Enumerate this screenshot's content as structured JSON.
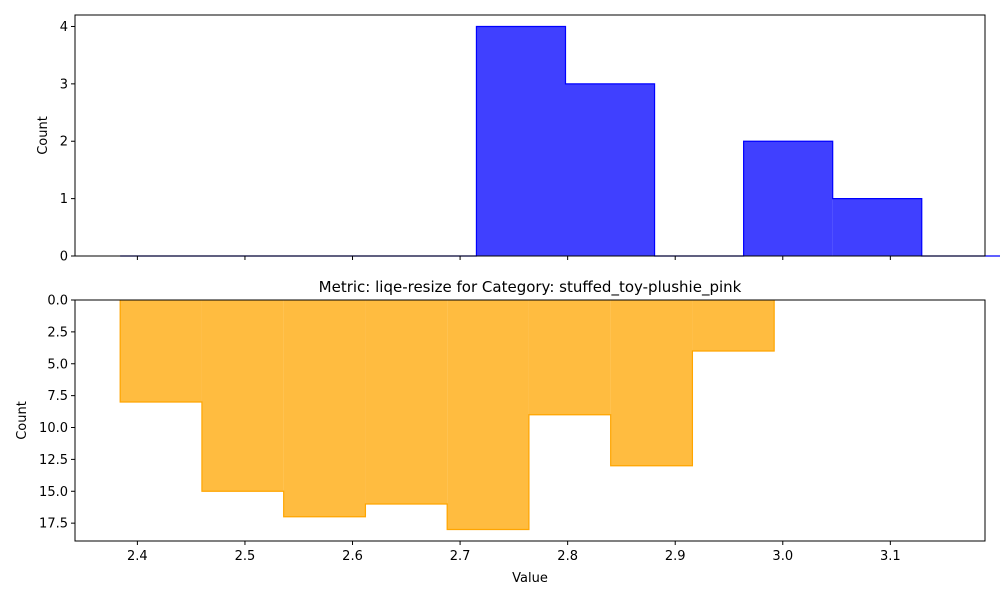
{
  "chart_data": [
    {
      "type": "histogram-step",
      "title": "",
      "xlabel": "",
      "ylabel": "Count",
      "xlim": [
        2.342,
        3.188
      ],
      "ylim": [
        0,
        4.2
      ],
      "y_inverted": false,
      "xticks": [
        2.4,
        2.5,
        2.6,
        2.7,
        2.8,
        2.9,
        3.0,
        3.1
      ],
      "xtick_labels_visible": false,
      "yticks": [
        0,
        1,
        2,
        3,
        4
      ],
      "ytick_labels": [
        "0",
        "1",
        "2",
        "3",
        "4"
      ],
      "color": "#0000ff",
      "bin_edges": [
        2.384,
        2.4668,
        2.5496,
        2.6324,
        2.7152,
        2.798,
        2.8808,
        2.9636,
        3.0464,
        3.1292,
        3.212
      ],
      "counts": [
        0,
        0,
        0,
        0,
        4,
        3,
        0,
        2,
        1,
        0
      ],
      "grid": false
    },
    {
      "type": "histogram-step",
      "title": "Metric: liqe-resize for Category: stuffed_toy-plushie_pink",
      "xlabel": "Value",
      "ylabel": "Count",
      "xlim": [
        2.342,
        3.188
      ],
      "ylim": [
        0,
        18.9
      ],
      "y_inverted": true,
      "xticks": [
        2.4,
        2.5,
        2.6,
        2.7,
        2.8,
        2.9,
        3.0,
        3.1
      ],
      "xtick_labels": [
        "2.4",
        "2.5",
        "2.6",
        "2.7",
        "2.8",
        "2.9",
        "3.0",
        "3.1"
      ],
      "yticks": [
        0,
        2.5,
        5,
        7.5,
        10,
        12.5,
        15,
        17.5
      ],
      "ytick_labels": [
        "0.0",
        "2.5",
        "5.0",
        "7.5",
        "10.0",
        "12.5",
        "15.0",
        "17.5"
      ],
      "color": "#ffa500",
      "bin_edges": [
        2.384,
        2.46,
        2.536,
        2.612,
        2.688,
        2.764,
        2.84,
        2.916,
        2.992
      ],
      "counts": [
        8,
        15,
        17,
        16,
        18,
        9,
        13,
        4
      ],
      "grid": false
    }
  ]
}
